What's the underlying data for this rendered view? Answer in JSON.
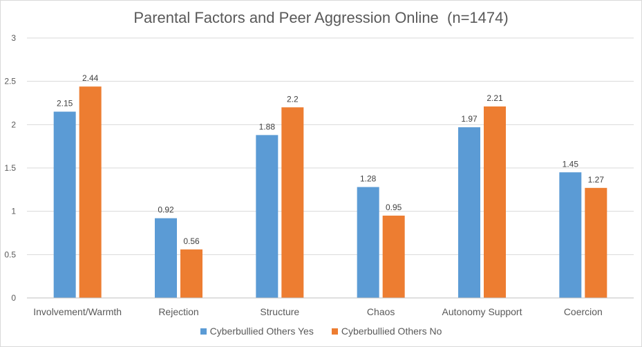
{
  "chart_data": {
    "type": "bar",
    "title": "Parental Factors and Peer Aggression Online  (n=1474)",
    "xlabel": "",
    "ylabel": "",
    "ylim": [
      0,
      3
    ],
    "yticks": [
      "0",
      "0.5",
      "1",
      "1.5",
      "2",
      "2.5",
      "3"
    ],
    "grid": true,
    "legend_position": "bottom",
    "categories": [
      "Involvement/Warmth",
      "Rejection",
      "Structure",
      "Chaos",
      "Autonomy Support",
      "Coercion"
    ],
    "series": [
      {
        "name": "Cyberbullied Others Yes",
        "color": "#5b9bd5",
        "values": [
          2.15,
          0.92,
          1.88,
          1.28,
          1.97,
          1.45
        ],
        "labels": [
          "2.15",
          "0.92",
          "1.88",
          "1.28",
          "1.97",
          "1.45"
        ]
      },
      {
        "name": "Cyberbullied Others No",
        "color": "#ed7d31",
        "values": [
          2.44,
          0.56,
          2.2,
          0.95,
          2.21,
          1.27
        ],
        "labels": [
          "2.44",
          "0.56",
          "2.2",
          "0.95",
          "2.21",
          "1.27"
        ]
      }
    ]
  }
}
